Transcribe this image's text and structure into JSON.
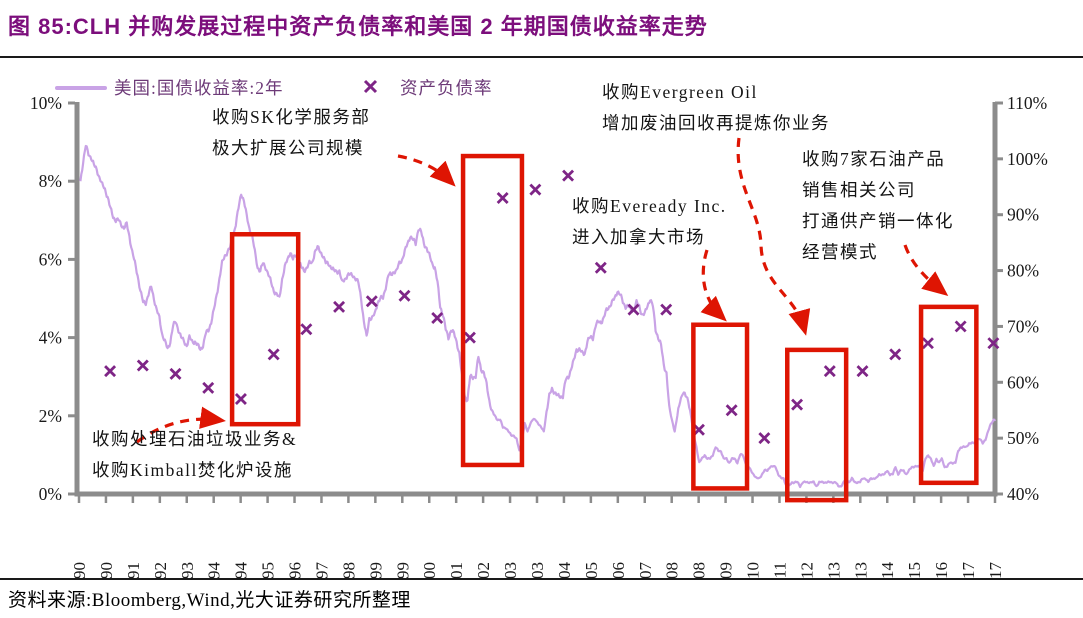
{
  "header": {
    "title": "图 85:CLH 并购发展过程中资产负债率和美国 2 年期国债收益率走势"
  },
  "legend": {
    "line_label": "美国:国债收益率:2年",
    "marker_label": "资产负债率"
  },
  "footer": {
    "source": "资料来源:Bloomberg,Wind,光大证券研究所整理"
  },
  "colors": {
    "title": "#7c0e7c",
    "yield_line": "#c9a3e6",
    "ratio_marker": "#7e2586",
    "highlight_red": "#de1503",
    "axis_gray": "#8c8c8c",
    "tick_text": "#1a1a1a"
  },
  "chart_data": {
    "type": "line+scatter",
    "title": "CLH并购发展过程中资产负债率和美国2年期国债收益率走势",
    "grid": false,
    "legend_position": "top-left",
    "left_axis": {
      "min": 0,
      "max": 10,
      "tick_values": [
        10,
        8,
        6,
        4,
        2,
        0
      ],
      "tick_labels": [
        "10%",
        "8%",
        "6%",
        "4%",
        "2%",
        "0%"
      ]
    },
    "right_axis": {
      "min": 40,
      "max": 110,
      "tick_values": [
        110,
        100,
        90,
        80,
        70,
        60,
        50,
        40
      ],
      "tick_labels": [
        "110%",
        "100%",
        "90%",
        "80%",
        "70%",
        "60%",
        "50%",
        "40%"
      ]
    },
    "x_tick_labels": [
      "1990",
      "1990",
      "1991",
      "1992",
      "1993",
      "1994",
      "1994",
      "1995",
      "1996",
      "1997",
      "1998",
      "1999",
      "1999",
      "2000",
      "2001",
      "2002",
      "2003",
      "2003",
      "2004",
      "2005",
      "2006",
      "2007",
      "2008",
      "2008",
      "2009",
      "2010",
      "2011",
      "2012",
      "2013",
      "2013",
      "2014",
      "2015",
      "2016",
      "2017",
      "2017"
    ],
    "series": [
      {
        "name": "美国:国债收益率:2年",
        "type": "line",
        "axis": "left",
        "unit": "%",
        "start_year": 1990,
        "frequency": "monthly",
        "values": [
          8.0,
          8.5,
          8.9,
          8.7,
          8.6,
          8.4,
          8.3,
          8.1,
          7.9,
          7.8,
          7.6,
          7.3,
          7.1,
          7.0,
          7.0,
          6.9,
          6.8,
          6.9,
          6.6,
          6.2,
          5.9,
          5.6,
          5.2,
          4.9,
          4.9,
          5.1,
          5.3,
          5.0,
          4.7,
          4.5,
          4.1,
          3.9,
          3.7,
          3.9,
          4.3,
          4.4,
          4.2,
          4.0,
          3.9,
          3.8,
          4.0,
          3.9,
          3.9,
          3.8,
          3.7,
          3.8,
          4.1,
          4.2,
          4.4,
          4.7,
          5.1,
          5.5,
          5.9,
          6.1,
          6.2,
          6.3,
          6.6,
          6.9,
          7.3,
          7.7,
          7.5,
          7.1,
          6.8,
          6.6,
          6.2,
          5.8,
          5.7,
          5.9,
          5.8,
          5.6,
          5.4,
          5.2,
          5.1,
          5.0,
          5.5,
          5.8,
          6.0,
          6.2,
          6.0,
          6.1,
          6.0,
          5.8,
          5.7,
          5.8,
          5.9,
          5.9,
          6.2,
          6.3,
          6.2,
          6.1,
          5.9,
          5.9,
          5.8,
          5.7,
          5.7,
          5.7,
          5.4,
          5.5,
          5.6,
          5.6,
          5.6,
          5.5,
          5.4,
          5.0,
          4.4,
          4.0,
          4.5,
          4.5,
          4.6,
          4.9,
          5.0,
          5.0,
          5.3,
          5.6,
          5.6,
          5.7,
          5.7,
          5.9,
          6.0,
          6.2,
          6.4,
          6.6,
          6.5,
          6.4,
          6.8,
          6.7,
          6.4,
          6.3,
          6.1,
          5.9,
          5.8,
          5.4,
          4.8,
          4.6,
          4.2,
          4.0,
          4.2,
          4.1,
          3.9,
          3.6,
          3.0,
          2.5,
          2.4,
          3.0,
          3.0,
          3.0,
          3.5,
          3.2,
          3.1,
          2.8,
          2.4,
          2.1,
          2.0,
          1.9,
          1.9,
          1.7,
          1.7,
          1.6,
          1.5,
          1.5,
          1.4,
          1.1,
          1.4,
          1.8,
          1.6,
          1.8,
          1.9,
          1.9,
          1.8,
          1.7,
          1.6,
          2.1,
          2.5,
          2.7,
          2.6,
          2.5,
          2.5,
          2.5,
          2.9,
          3.0,
          3.2,
          3.4,
          3.7,
          3.7,
          3.6,
          3.6,
          3.9,
          4.0,
          4.0,
          4.3,
          4.4,
          4.4,
          4.5,
          4.7,
          4.8,
          4.9,
          5.0,
          5.2,
          5.1,
          4.9,
          4.8,
          4.8,
          4.7,
          4.7,
          4.9,
          4.8,
          4.6,
          4.6,
          4.8,
          5.0,
          4.8,
          4.2,
          4.0,
          3.8,
          3.3,
          3.1,
          2.2,
          1.9,
          1.6,
          2.0,
          2.4,
          2.6,
          2.5,
          2.4,
          2.0,
          1.5,
          1.2,
          0.8,
          0.9,
          1.0,
          0.9,
          0.9,
          1.0,
          1.2,
          1.1,
          1.1,
          0.9,
          0.9,
          0.8,
          0.9,
          0.9,
          0.8,
          1.0,
          1.0,
          0.8,
          0.7,
          0.6,
          0.5,
          0.4,
          0.4,
          0.5,
          0.6,
          0.6,
          0.7,
          0.7,
          0.7,
          0.5,
          0.4,
          0.4,
          0.2,
          0.2,
          0.3,
          0.3,
          0.3,
          0.2,
          0.3,
          0.3,
          0.3,
          0.3,
          0.3,
          0.2,
          0.3,
          0.3,
          0.3,
          0.3,
          0.3,
          0.3,
          0.3,
          0.2,
          0.2,
          0.3,
          0.4,
          0.3,
          0.4,
          0.3,
          0.3,
          0.3,
          0.4,
          0.4,
          0.3,
          0.4,
          0.4,
          0.4,
          0.5,
          0.5,
          0.5,
          0.6,
          0.5,
          0.5,
          0.7,
          0.5,
          0.6,
          0.6,
          0.5,
          0.6,
          0.7,
          0.7,
          0.7,
          0.7,
          0.6,
          0.9,
          1.0,
          0.9,
          0.7,
          0.9,
          0.8,
          0.9,
          0.7,
          0.7,
          0.8,
          0.8,
          0.8,
          1.1,
          1.2,
          1.2,
          1.2,
          1.3,
          1.3,
          1.3,
          1.4,
          1.4,
          1.3,
          1.4,
          1.6,
          1.8,
          1.9
        ]
      },
      {
        "name": "资产负债率",
        "type": "scatter",
        "marker": "x",
        "axis": "right",
        "unit": "%",
        "years": [
          1990,
          1991,
          1992,
          1993,
          1994,
          1995,
          1996,
          1997,
          1998,
          1999,
          2000,
          2001,
          2002,
          2003,
          2004,
          2005,
          2006,
          2007,
          2008,
          2009,
          2010,
          2011,
          2012,
          2013,
          2014,
          2015,
          2016,
          2017
        ],
        "values": [
          62,
          63,
          61.5,
          59,
          57,
          65,
          69.5,
          73.5,
          74.5,
          75.5,
          71.5,
          68,
          93,
          94.5,
          97,
          80.5,
          73,
          73,
          51.5,
          55,
          50,
          56,
          62,
          62,
          65,
          67,
          70,
          67
        ]
      }
    ],
    "highlight_boxes": [
      {
        "event": "收购处理石油垃圾业务&收购Kimball焚化炉设施",
        "year_from": 1994.68,
        "year_to": 1996.7,
        "pct_top": 86.5,
        "pct_bottom": 52.5
      },
      {
        "event": "收购SK化学服务部",
        "year_from": 2001.74,
        "year_to": 2003.54,
        "pct_top": 100.5,
        "pct_bottom": 45.2
      },
      {
        "event": "收购Eveready Inc.",
        "year_from": 2008.78,
        "year_to": 2010.42,
        "pct_top": 70.3,
        "pct_bottom": 41.0
      },
      {
        "event": "收购Evergreen Oil",
        "year_from": 2011.65,
        "year_to": 2013.45,
        "pct_top": 65.8,
        "pct_bottom": 38.9
      },
      {
        "event": "收购7家石油产品销售相关公司",
        "year_from": 2015.74,
        "year_to": 2017.43,
        "pct_top": 73.5,
        "pct_bottom": 42.0
      }
    ],
    "annotations": [
      {
        "id": "kimball",
        "text": "收购处理石油垃圾业务&\n收购Kimball焚化炉设施"
      },
      {
        "id": "sk",
        "text": "收购SK化学服务部\n极大扩展公司规模"
      },
      {
        "id": "evergreen",
        "text": "收购Evergreen Oil\n增加废油回收再提炼你业务"
      },
      {
        "id": "eveready",
        "text": "收购Eveready Inc.\n进入加拿大市场"
      },
      {
        "id": "seven",
        "text": "收购7家石油产品\n销售相关公司\n打通供产销一体化\n经营模式"
      }
    ]
  }
}
